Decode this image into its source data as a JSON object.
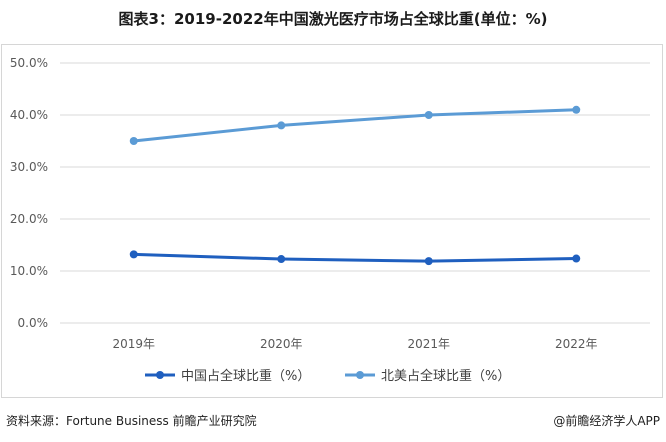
{
  "title": "图表3：2019-2022年中国激光医疗市场占全球比重(单位：%)",
  "source": "资料来源：Fortune Business 前瞻产业研究院",
  "credit": "@前瞻经济学人APP",
  "chart_data": {
    "type": "line",
    "categories": [
      "2019年",
      "2020年",
      "2021年",
      "2022年"
    ],
    "series": [
      {
        "name": "中国占全球比重（%）",
        "values": [
          13.2,
          12.3,
          11.9,
          12.4
        ],
        "color": "#1f5fbf"
      },
      {
        "name": "北美占全球比重（%）",
        "values": [
          35.0,
          38.0,
          40.0,
          41.0
        ],
        "color": "#5b9bd5"
      }
    ],
    "yticks": [
      "0.0%",
      "10.0%",
      "20.0%",
      "30.0%",
      "40.0%",
      "50.0%"
    ],
    "ylim": [
      0,
      50
    ],
    "grid": true,
    "legend": "bottom"
  }
}
